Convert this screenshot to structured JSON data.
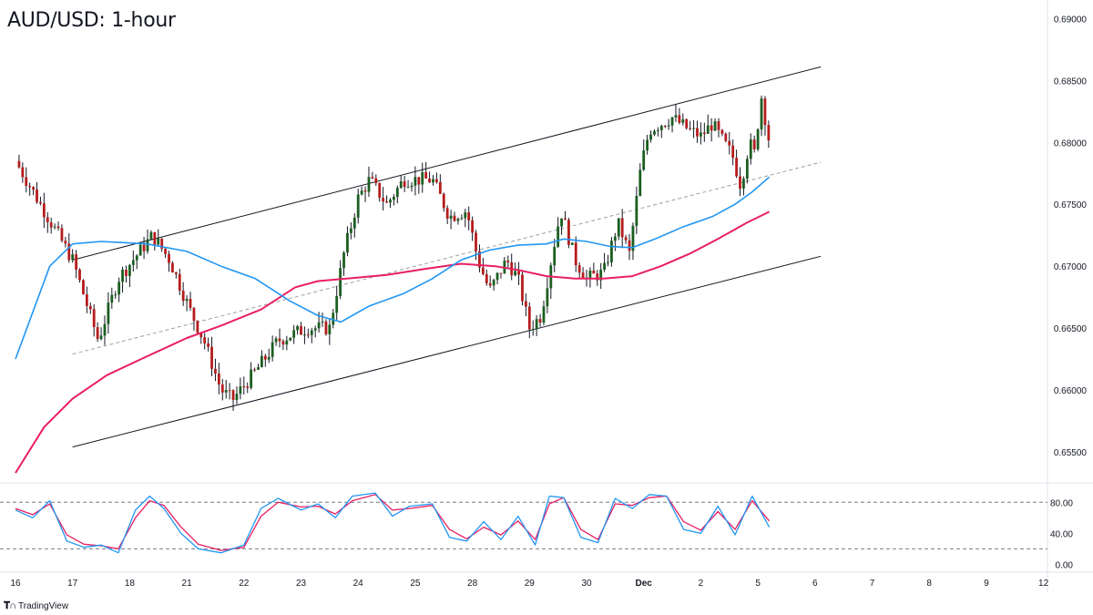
{
  "title": "AUD/USD: 1-hour",
  "brand": {
    "logo_icon": "tradingview-logo-icon",
    "label": "TradingView"
  },
  "colors": {
    "up": "#26a69a",
    "down": "#ef5350",
    "candle_body_up": "#1b5e20",
    "candle_body_down": "#b71c1c",
    "sma_fast": "#2196f3",
    "sma_slow": "#e91e63",
    "stoch_k": "#2196f3",
    "stoch_d": "#e91e63",
    "channel": "#131722",
    "midline": "#9e9e9e",
    "axis_text": "#131722",
    "grid_border": "#e0e3eb"
  },
  "chart_data": [
    {
      "type": "candlestick",
      "symbol": "AUD/USD",
      "timeframe": "1-hour",
      "x_ticks": [
        "16",
        "17",
        "18",
        "21",
        "22",
        "23",
        "24",
        "25",
        "28",
        "29",
        "30",
        "Dec",
        "2",
        "5",
        "6",
        "7",
        "8",
        "9",
        "12"
      ],
      "y_ticks": [
        "0.69000",
        "0.68500",
        "0.68000",
        "0.67500",
        "0.67000",
        "0.66500",
        "0.66000",
        "0.65500"
      ],
      "ylim": [
        0.6525,
        0.6915
      ],
      "price_path": [
        [
          0,
          0.6785
        ],
        [
          1.0,
          0.6705
        ],
        [
          1.45,
          0.664
        ],
        [
          1.8,
          0.669
        ],
        [
          2.4,
          0.6725
        ],
        [
          2.7,
          0.6705
        ],
        [
          3.05,
          0.6665
        ],
        [
          3.3,
          0.664
        ],
        [
          3.6,
          0.66
        ],
        [
          3.8,
          0.6592
        ],
        [
          4.2,
          0.6615
        ],
        [
          4.6,
          0.664
        ],
        [
          5.1,
          0.665
        ],
        [
          5.5,
          0.665
        ],
        [
          5.75,
          0.671
        ],
        [
          6.0,
          0.6755
        ],
        [
          6.2,
          0.677
        ],
        [
          6.5,
          0.675
        ],
        [
          6.8,
          0.677
        ],
        [
          7.3,
          0.677
        ],
        [
          7.6,
          0.674
        ],
        [
          7.9,
          0.6745
        ],
        [
          8.1,
          0.6705
        ],
        [
          8.3,
          0.668
        ],
        [
          8.6,
          0.6705
        ],
        [
          8.8,
          0.669
        ],
        [
          9.0,
          0.665
        ],
        [
          9.2,
          0.666
        ],
        [
          9.4,
          0.671
        ],
        [
          9.55,
          0.6745
        ],
        [
          9.8,
          0.6705
        ],
        [
          10.0,
          0.669
        ],
        [
          10.3,
          0.6695
        ],
        [
          10.55,
          0.6735
        ],
        [
          10.75,
          0.671
        ],
        [
          10.95,
          0.678
        ],
        [
          11.1,
          0.681
        ],
        [
          11.5,
          0.682
        ],
        [
          11.8,
          0.681
        ],
        [
          12.0,
          0.6805
        ],
        [
          12.2,
          0.6815
        ],
        [
          12.4,
          0.68
        ],
        [
          12.55,
          0.679
        ],
        [
          12.7,
          0.6765
        ],
        [
          12.85,
          0.68
        ],
        [
          12.95,
          0.679
        ],
        [
          13.05,
          0.684
        ],
        [
          13.2,
          0.68
        ]
      ],
      "sma_fast": [
        [
          0,
          0.6625
        ],
        [
          0.6,
          0.67
        ],
        [
          1.0,
          0.6718
        ],
        [
          1.5,
          0.672
        ],
        [
          2.3,
          0.6718
        ],
        [
          3.0,
          0.6712
        ],
        [
          3.6,
          0.67
        ],
        [
          4.2,
          0.669
        ],
        [
          4.8,
          0.6672
        ],
        [
          5.3,
          0.666
        ],
        [
          5.7,
          0.6655
        ],
        [
          6.2,
          0.6668
        ],
        [
          6.8,
          0.6678
        ],
        [
          7.3,
          0.669
        ],
        [
          7.8,
          0.6705
        ],
        [
          8.3,
          0.6713
        ],
        [
          8.8,
          0.6717
        ],
        [
          9.3,
          0.6718
        ],
        [
          9.6,
          0.6722
        ],
        [
          10.0,
          0.672
        ],
        [
          10.4,
          0.6716
        ],
        [
          10.8,
          0.6715
        ],
        [
          11.2,
          0.6722
        ],
        [
          11.7,
          0.6732
        ],
        [
          12.2,
          0.674
        ],
        [
          12.6,
          0.675
        ],
        [
          12.9,
          0.676
        ],
        [
          13.2,
          0.6772
        ]
      ],
      "sma_slow": [
        [
          0,
          0.6533
        ],
        [
          0.5,
          0.657
        ],
        [
          1.0,
          0.6593
        ],
        [
          1.6,
          0.6612
        ],
        [
          2.2,
          0.6625
        ],
        [
          3.0,
          0.6642
        ],
        [
          3.6,
          0.6652
        ],
        [
          4.3,
          0.6665
        ],
        [
          4.9,
          0.6683
        ],
        [
          5.3,
          0.6688
        ],
        [
          5.8,
          0.669
        ],
        [
          6.5,
          0.6693
        ],
        [
          7.2,
          0.6698
        ],
        [
          7.8,
          0.6702
        ],
        [
          8.4,
          0.67
        ],
        [
          8.8,
          0.6697
        ],
        [
          9.3,
          0.6692
        ],
        [
          9.8,
          0.669
        ],
        [
          10.3,
          0.669
        ],
        [
          10.8,
          0.6692
        ],
        [
          11.3,
          0.67
        ],
        [
          11.8,
          0.671
        ],
        [
          12.3,
          0.6722
        ],
        [
          12.8,
          0.6735
        ],
        [
          13.2,
          0.6744
        ]
      ],
      "channel": {
        "upper": [
          [
            1.0,
            0.6705
          ],
          [
            14.1,
            0.6861
          ]
        ],
        "lower": [
          [
            1.0,
            0.6554
          ],
          [
            14.1,
            0.6708
          ]
        ],
        "mid": [
          [
            1.0,
            0.6629
          ],
          [
            14.1,
            0.6784
          ]
        ]
      }
    },
    {
      "type": "line",
      "indicator": "stochastic",
      "y_ticks": [
        "80.00",
        "40.00",
        "0.00"
      ],
      "ylim": [
        -10,
        105
      ],
      "levels": [
        80,
        20
      ],
      "k": [
        [
          0,
          70
        ],
        [
          0.3,
          60
        ],
        [
          0.6,
          82
        ],
        [
          0.9,
          30
        ],
        [
          1.2,
          22
        ],
        [
          1.5,
          25
        ],
        [
          1.8,
          15
        ],
        [
          2.1,
          70
        ],
        [
          2.35,
          88
        ],
        [
          2.6,
          72
        ],
        [
          2.9,
          40
        ],
        [
          3.2,
          20
        ],
        [
          3.6,
          15
        ],
        [
          4.0,
          25
        ],
        [
          4.3,
          72
        ],
        [
          4.6,
          85
        ],
        [
          5.0,
          70
        ],
        [
          5.3,
          78
        ],
        [
          5.6,
          60
        ],
        [
          5.9,
          88
        ],
        [
          6.3,
          92
        ],
        [
          6.6,
          62
        ],
        [
          6.9,
          75
        ],
        [
          7.3,
          78
        ],
        [
          7.6,
          35
        ],
        [
          7.9,
          30
        ],
        [
          8.2,
          55
        ],
        [
          8.5,
          32
        ],
        [
          8.8,
          62
        ],
        [
          9.1,
          25
        ],
        [
          9.35,
          88
        ],
        [
          9.6,
          86
        ],
        [
          9.9,
          35
        ],
        [
          10.2,
          28
        ],
        [
          10.5,
          85
        ],
        [
          10.8,
          72
        ],
        [
          11.1,
          90
        ],
        [
          11.4,
          88
        ],
        [
          11.7,
          45
        ],
        [
          12.0,
          40
        ],
        [
          12.3,
          75
        ],
        [
          12.6,
          38
        ],
        [
          12.9,
          88
        ],
        [
          13.2,
          48
        ]
      ],
      "d": [
        [
          0,
          72
        ],
        [
          0.3,
          64
        ],
        [
          0.6,
          78
        ],
        [
          0.9,
          38
        ],
        [
          1.2,
          26
        ],
        [
          1.5,
          24
        ],
        [
          1.8,
          20
        ],
        [
          2.1,
          60
        ],
        [
          2.35,
          82
        ],
        [
          2.6,
          76
        ],
        [
          2.9,
          48
        ],
        [
          3.2,
          26
        ],
        [
          3.6,
          18
        ],
        [
          4.0,
          22
        ],
        [
          4.3,
          62
        ],
        [
          4.6,
          80
        ],
        [
          5.0,
          74
        ],
        [
          5.3,
          75
        ],
        [
          5.6,
          65
        ],
        [
          5.9,
          82
        ],
        [
          6.3,
          90
        ],
        [
          6.6,
          70
        ],
        [
          6.9,
          72
        ],
        [
          7.3,
          76
        ],
        [
          7.6,
          45
        ],
        [
          7.9,
          33
        ],
        [
          8.2,
          48
        ],
        [
          8.5,
          38
        ],
        [
          8.8,
          56
        ],
        [
          9.1,
          32
        ],
        [
          9.35,
          78
        ],
        [
          9.6,
          86
        ],
        [
          9.9,
          45
        ],
        [
          10.2,
          32
        ],
        [
          10.5,
          78
        ],
        [
          10.8,
          76
        ],
        [
          11.1,
          86
        ],
        [
          11.4,
          88
        ],
        [
          11.7,
          55
        ],
        [
          12.0,
          44
        ],
        [
          12.3,
          68
        ],
        [
          12.6,
          45
        ],
        [
          12.9,
          82
        ],
        [
          13.2,
          56
        ]
      ]
    }
  ]
}
